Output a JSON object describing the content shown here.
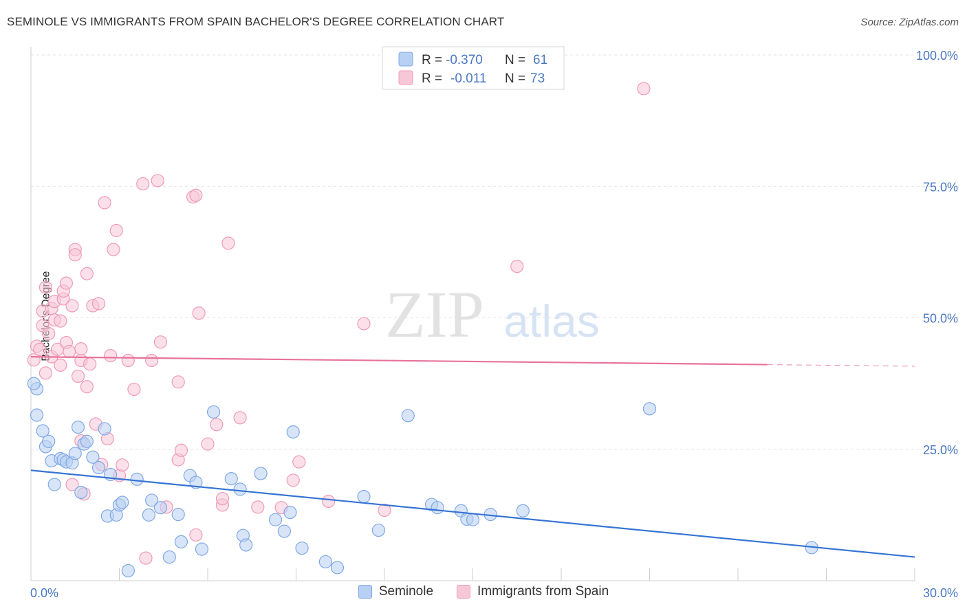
{
  "title": "SEMINOLE VS IMMIGRANTS FROM SPAIN BACHELOR'S DEGREE CORRELATION CHART",
  "source": "Source: ZipAtlas.com",
  "watermark": {
    "zip": "ZIP",
    "atlas": "atlas"
  },
  "legend": {
    "r_label": "R =",
    "n_label": "N =",
    "entries": [
      {
        "r": "-0.370",
        "n": "61"
      },
      {
        "r": "-0.011",
        "n": "73"
      }
    ]
  },
  "colors": {
    "blue": "#7fa8e6",
    "blue_fill": "#b8d0f3",
    "blue_line": "#3574d4",
    "pink": "#ef9ab8",
    "pink_fill": "#f8c7d7",
    "pink_line": "#e8729a"
  },
  "chart_data": {
    "type": "scatter",
    "title": "SEMINOLE VS IMMIGRANTS FROM SPAIN BACHELOR'S DEGREE CORRELATION CHART",
    "xlabel": "",
    "ylabel": "Bachelor's Degree",
    "xlim": [
      0,
      30
    ],
    "ylim": [
      0,
      100
    ],
    "x_tick_labels": [
      "0.0%",
      "30.0%"
    ],
    "y_ticks": [
      25,
      50,
      75,
      100
    ],
    "y_tick_labels": [
      "25.0%",
      "50.0%",
      "75.0%",
      "100.0%"
    ],
    "series": [
      {
        "name": "Seminole",
        "r": -0.37,
        "n": 61,
        "trend": {
          "x": [
            0,
            30
          ],
          "y": [
            21.0,
            4.5
          ]
        },
        "points": [
          [
            0.2,
            36.5
          ],
          [
            0.2,
            31.5
          ],
          [
            0.4,
            28.5
          ],
          [
            0.5,
            25.5
          ],
          [
            0.6,
            26.5
          ],
          [
            0.7,
            22.8
          ],
          [
            0.8,
            18.3
          ],
          [
            1.0,
            23.2
          ],
          [
            1.1,
            23.0
          ],
          [
            1.2,
            22.6
          ],
          [
            1.4,
            22.4
          ],
          [
            1.5,
            24.2
          ],
          [
            1.6,
            29.2
          ],
          [
            1.7,
            16.8
          ],
          [
            1.8,
            26.0
          ],
          [
            1.9,
            26.5
          ],
          [
            2.1,
            23.5
          ],
          [
            2.3,
            21.5
          ],
          [
            2.5,
            28.9
          ],
          [
            2.6,
            12.3
          ],
          [
            2.7,
            20.2
          ],
          [
            2.9,
            12.5
          ],
          [
            3.0,
            14.4
          ],
          [
            3.1,
            14.9
          ],
          [
            3.3,
            1.9
          ],
          [
            3.6,
            19.3
          ],
          [
            4.0,
            12.5
          ],
          [
            4.1,
            15.3
          ],
          [
            4.4,
            13.9
          ],
          [
            4.7,
            4.5
          ],
          [
            5.0,
            12.6
          ],
          [
            5.1,
            7.4
          ],
          [
            5.4,
            20.0
          ],
          [
            5.6,
            18.7
          ],
          [
            5.8,
            6.0
          ],
          [
            6.2,
            32.1
          ],
          [
            6.8,
            19.4
          ],
          [
            7.1,
            17.4
          ],
          [
            7.2,
            8.6
          ],
          [
            7.3,
            6.8
          ],
          [
            7.8,
            20.4
          ],
          [
            8.3,
            11.6
          ],
          [
            8.6,
            9.4
          ],
          [
            8.8,
            13.0
          ],
          [
            8.9,
            28.3
          ],
          [
            9.2,
            6.2
          ],
          [
            10.0,
            3.6
          ],
          [
            10.4,
            2.5
          ],
          [
            11.3,
            16.0
          ],
          [
            11.8,
            9.6
          ],
          [
            12.8,
            31.4
          ],
          [
            13.6,
            14.5
          ],
          [
            13.8,
            13.9
          ],
          [
            14.6,
            13.3
          ],
          [
            14.8,
            11.7
          ],
          [
            15.0,
            11.6
          ],
          [
            15.6,
            12.6
          ],
          [
            16.7,
            13.3
          ],
          [
            21.0,
            32.7
          ],
          [
            26.5,
            6.3
          ],
          [
            0.1,
            37.5
          ]
        ]
      },
      {
        "name": "Immigrants from Spain",
        "r": -0.011,
        "n": 73,
        "trend": {
          "x": [
            0,
            25
          ],
          "y": [
            42.6,
            41.1
          ],
          "dash_to_x": 30,
          "dash_to_y": 40.8
        },
        "points": [
          [
            0.1,
            42.0
          ],
          [
            0.2,
            44.6
          ],
          [
            0.3,
            44.0
          ],
          [
            0.4,
            51.3
          ],
          [
            0.4,
            48.5
          ],
          [
            0.5,
            55.8
          ],
          [
            0.5,
            39.5
          ],
          [
            0.6,
            47.0
          ],
          [
            0.7,
            42.6
          ],
          [
            0.7,
            51.8
          ],
          [
            0.8,
            49.6
          ],
          [
            0.8,
            53.1
          ],
          [
            0.9,
            44.0
          ],
          [
            1.0,
            41.0
          ],
          [
            1.0,
            49.4
          ],
          [
            1.1,
            53.6
          ],
          [
            1.1,
            55.1
          ],
          [
            1.2,
            56.6
          ],
          [
            1.2,
            45.3
          ],
          [
            1.3,
            43.6
          ],
          [
            1.4,
            52.3
          ],
          [
            1.4,
            18.3
          ],
          [
            1.5,
            63.0
          ],
          [
            1.5,
            62.0
          ],
          [
            1.6,
            38.9
          ],
          [
            1.7,
            41.9
          ],
          [
            1.7,
            44.1
          ],
          [
            1.7,
            26.6
          ],
          [
            1.8,
            16.5
          ],
          [
            1.9,
            58.4
          ],
          [
            1.9,
            36.9
          ],
          [
            2.0,
            41.2
          ],
          [
            2.1,
            52.3
          ],
          [
            2.2,
            29.8
          ],
          [
            2.3,
            52.7
          ],
          [
            2.4,
            22.1
          ],
          [
            2.5,
            71.9
          ],
          [
            2.6,
            27.0
          ],
          [
            2.7,
            42.8
          ],
          [
            2.8,
            63.0
          ],
          [
            2.9,
            66.6
          ],
          [
            3.0,
            20.0
          ],
          [
            3.1,
            22.0
          ],
          [
            3.3,
            41.9
          ],
          [
            3.5,
            36.4
          ],
          [
            3.8,
            75.5
          ],
          [
            3.9,
            4.3
          ],
          [
            4.1,
            41.9
          ],
          [
            4.3,
            76.1
          ],
          [
            4.4,
            45.4
          ],
          [
            4.6,
            14.0
          ],
          [
            5.0,
            37.8
          ],
          [
            5.0,
            23.0
          ],
          [
            5.1,
            24.8
          ],
          [
            5.5,
            73.0
          ],
          [
            5.6,
            73.3
          ],
          [
            5.6,
            8.7
          ],
          [
            5.7,
            50.9
          ],
          [
            6.0,
            26.0
          ],
          [
            6.3,
            29.7
          ],
          [
            6.5,
            14.4
          ],
          [
            6.5,
            15.6
          ],
          [
            6.7,
            64.2
          ],
          [
            7.1,
            31.0
          ],
          [
            7.7,
            14.0
          ],
          [
            8.5,
            13.9
          ],
          [
            8.9,
            19.1
          ],
          [
            9.1,
            22.6
          ],
          [
            10.1,
            15.1
          ],
          [
            11.3,
            48.9
          ],
          [
            12.0,
            13.4
          ],
          [
            16.5,
            59.8
          ],
          [
            20.8,
            93.6
          ]
        ]
      }
    ]
  }
}
